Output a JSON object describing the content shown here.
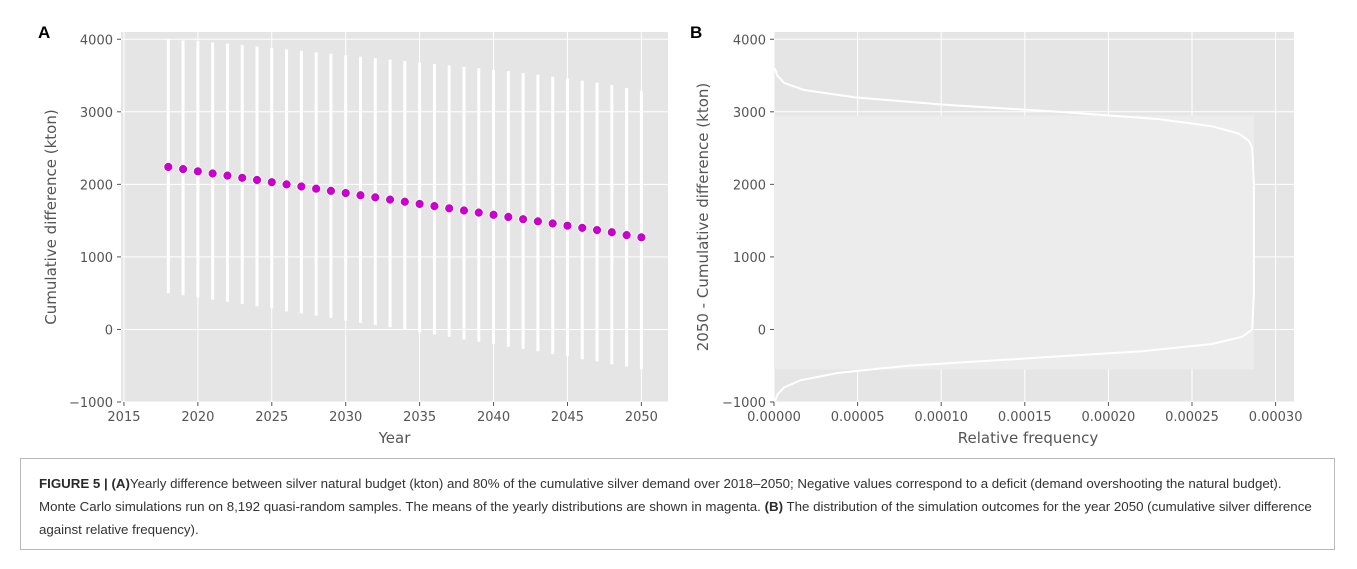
{
  "figure": {
    "caption": {
      "label": "FIGURE 5 |",
      "part_a_tag": "(A)",
      "part_a_text": "Yearly difference between silver natural budget (kton) and 80% of the cumulative silver demand over 2018–2050; Negative values correspond to a deficit (demand overshooting the natural budget). Monte Carlo simulations run on 8,192 quasi-random samples. The means of the yearly distributions are shown in magenta.",
      "part_b_tag": "(B)",
      "part_b_text": " The distribution of the simulation outcomes for the year 2050 (cumulative silver difference against relative frequency)."
    }
  },
  "chart_data": [
    {
      "panel": "A",
      "type": "scatter",
      "title": "",
      "xlabel": "Year",
      "ylabel": "Cumulative difference (kton)",
      "xlim": [
        2014.8,
        2051.8
      ],
      "ylim": [
        -1000,
        4100
      ],
      "xticks": [
        2015,
        2020,
        2025,
        2030,
        2035,
        2040,
        2045,
        2050
      ],
      "yticks": [
        -1000,
        0,
        1000,
        2000,
        3000,
        4000
      ],
      "grid": true,
      "background": "#e5e5e5",
      "mean_color": "#cc00cc",
      "range_color": "#ffffff",
      "x": [
        2018,
        2019,
        2020,
        2021,
        2022,
        2023,
        2024,
        2025,
        2026,
        2027,
        2028,
        2029,
        2030,
        2031,
        2032,
        2033,
        2034,
        2035,
        2036,
        2037,
        2038,
        2039,
        2040,
        2041,
        2042,
        2043,
        2044,
        2045,
        2046,
        2047,
        2048,
        2049,
        2050
      ],
      "mean": [
        2240,
        2210,
        2180,
        2150,
        2120,
        2090,
        2060,
        2030,
        2000,
        1970,
        1940,
        1910,
        1880,
        1850,
        1820,
        1790,
        1760,
        1730,
        1700,
        1670,
        1640,
        1610,
        1580,
        1550,
        1520,
        1490,
        1460,
        1430,
        1400,
        1370,
        1340,
        1300,
        1270
      ],
      "upper": [
        4000,
        3985,
        3970,
        3955,
        3940,
        3920,
        3900,
        3880,
        3860,
        3840,
        3820,
        3800,
        3780,
        3760,
        3740,
        3720,
        3700,
        3680,
        3660,
        3640,
        3620,
        3600,
        3580,
        3560,
        3535,
        3510,
        3485,
        3460,
        3430,
        3400,
        3370,
        3330,
        3290
      ],
      "lower": [
        500,
        470,
        440,
        410,
        380,
        350,
        320,
        290,
        250,
        220,
        190,
        160,
        120,
        90,
        60,
        30,
        0,
        -40,
        -70,
        -100,
        -140,
        -170,
        -200,
        -240,
        -270,
        -300,
        -340,
        -370,
        -410,
        -440,
        -480,
        -510,
        -550
      ]
    },
    {
      "panel": "B",
      "type": "area",
      "title": "",
      "xlabel": "Relative frequency",
      "ylabel": "2050 - Cumulative difference (kton)",
      "xlim": [
        0,
        0.000311
      ],
      "ylim": [
        -1000,
        4100
      ],
      "xticks": [
        "0.00000",
        "0.00005",
        "0.00010",
        "0.00015",
        "0.00020",
        "0.00025",
        "0.00030"
      ],
      "xtick_values": [
        0,
        5e-05,
        0.0001,
        0.00015,
        0.0002,
        0.00025,
        0.0003
      ],
      "yticks": [
        -1000,
        0,
        1000,
        2000,
        3000,
        4000
      ],
      "grid": true,
      "background": "#e5e5e5",
      "line_color": "#ffffff",
      "density_peak": 0.000287,
      "density_range": [
        -550,
        2950
      ],
      "kde_curve": {
        "y": [
          -1000,
          -900,
          -800,
          -700,
          -600,
          -500,
          -400,
          -300,
          -200,
          -100,
          0,
          500,
          1000,
          1500,
          2000,
          2500,
          2600,
          2700,
          2800,
          2900,
          3000,
          3100,
          3200,
          3300,
          3400,
          3500,
          3600
        ],
        "x": [
          5e-07,
          2e-06,
          6e-06,
          1.6e-05,
          3.8e-05,
          8e-05,
          0.00015,
          0.00022,
          0.000262,
          0.00028,
          0.000286,
          0.000287,
          0.000287,
          0.000287,
          0.000287,
          0.000286,
          0.000284,
          0.000278,
          0.000262,
          0.00023,
          0.00017,
          0.0001,
          4.8e-05,
          1.8e-05,
          6e-06,
          2e-06,
          5e-07
        ]
      }
    }
  ]
}
